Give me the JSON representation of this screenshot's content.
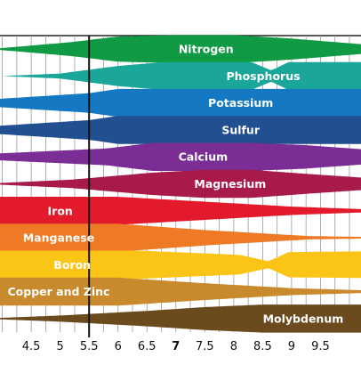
{
  "chart_data": {
    "type": "area",
    "title": "",
    "xlabel": "",
    "ylabel": "",
    "x_ticks": [
      "4.5",
      "5",
      "5.5",
      "6",
      "6.5",
      "7",
      "7.5",
      "8",
      "8.5",
      "9",
      "9.5"
    ],
    "x_tick_values": [
      4.5,
      5,
      5.5,
      6,
      6.5,
      7,
      7.5,
      8,
      8.5,
      9,
      9.5
    ],
    "bold_tick": "7",
    "xlim": [
      3.96,
      10.2
    ],
    "reference_line": 5.5,
    "grid": true,
    "series": [
      {
        "name": "Nitrogen",
        "color": "#0f9a43",
        "profile": [
          [
            3.96,
            0.06
          ],
          [
            5.2,
            0.5
          ],
          [
            6,
            0.9
          ],
          [
            7,
            1
          ],
          [
            8,
            1
          ],
          [
            9,
            0.75
          ],
          [
            10.2,
            0.35
          ]
        ]
      },
      {
        "name": "Phosphorus",
        "color": "#1aa79a",
        "profile": [
          [
            4.0,
            0.0
          ],
          [
            5.0,
            0.18
          ],
          [
            6,
            0.72
          ],
          [
            6.8,
            1
          ],
          [
            8.3,
            1
          ],
          [
            8.65,
            0.4
          ],
          [
            8.95,
            1
          ],
          [
            10.2,
            1
          ]
        ]
      },
      {
        "name": "Potassium",
        "color": "#1578c2",
        "profile": [
          [
            3.96,
            0.3
          ],
          [
            5.5,
            0.7
          ],
          [
            6,
            1
          ],
          [
            10.2,
            1
          ]
        ]
      },
      {
        "name": "Sulfur",
        "color": "#214f8f",
        "profile": [
          [
            3.96,
            0.3
          ],
          [
            5.5,
            0.7
          ],
          [
            6,
            1
          ],
          [
            10.2,
            1
          ]
        ]
      },
      {
        "name": "Calcium",
        "color": "#7a2e95",
        "profile": [
          [
            3.96,
            0.25
          ],
          [
            5.8,
            0.6
          ],
          [
            6.6,
            1
          ],
          [
            8.3,
            1
          ],
          [
            9.2,
            0.85
          ],
          [
            10.2,
            0.55
          ]
        ]
      },
      {
        "name": "Magnesium",
        "color": "#a81a47",
        "profile": [
          [
            3.96,
            0.06
          ],
          [
            5.2,
            0.3
          ],
          [
            6.6,
            0.8
          ],
          [
            7.5,
            1
          ],
          [
            8.3,
            1
          ],
          [
            9.3,
            0.7
          ],
          [
            10.2,
            0.45
          ]
        ]
      },
      {
        "name": "Iron",
        "color": "#e21a2c",
        "profile": [
          [
            3.96,
            1
          ],
          [
            6.0,
            1
          ],
          [
            7.5,
            0.65
          ],
          [
            9,
            0.3
          ],
          [
            10.2,
            0.12
          ]
        ]
      },
      {
        "name": "Manganese",
        "color": "#ee7a26",
        "profile": [
          [
            3.96,
            1
          ],
          [
            6.0,
            1
          ],
          [
            7.5,
            0.55
          ],
          [
            9.3,
            0.12
          ],
          [
            10.2,
            0.06
          ]
        ]
      },
      {
        "name": "Boron",
        "color": "#fbc517",
        "profile": [
          [
            3.96,
            1
          ],
          [
            6.4,
            1
          ],
          [
            8.1,
            0.7
          ],
          [
            8.6,
            0.25
          ],
          [
            8.95,
            0.9
          ],
          [
            10.2,
            0.95
          ]
        ]
      },
      {
        "name": "Copper and Zinc",
        "color": "#c98a2e",
        "profile": [
          [
            3.96,
            1
          ],
          [
            6.0,
            1
          ],
          [
            7.5,
            0.6
          ],
          [
            9,
            0.25
          ],
          [
            10.2,
            0.1
          ]
        ]
      },
      {
        "name": "Molybdenum",
        "color": "#6b4a1e",
        "profile": [
          [
            3.96,
            0.05
          ],
          [
            5.0,
            0.22
          ],
          [
            6.5,
            0.55
          ],
          [
            7.5,
            0.82
          ],
          [
            8.5,
            1
          ],
          [
            10.2,
            1
          ]
        ]
      }
    ]
  }
}
